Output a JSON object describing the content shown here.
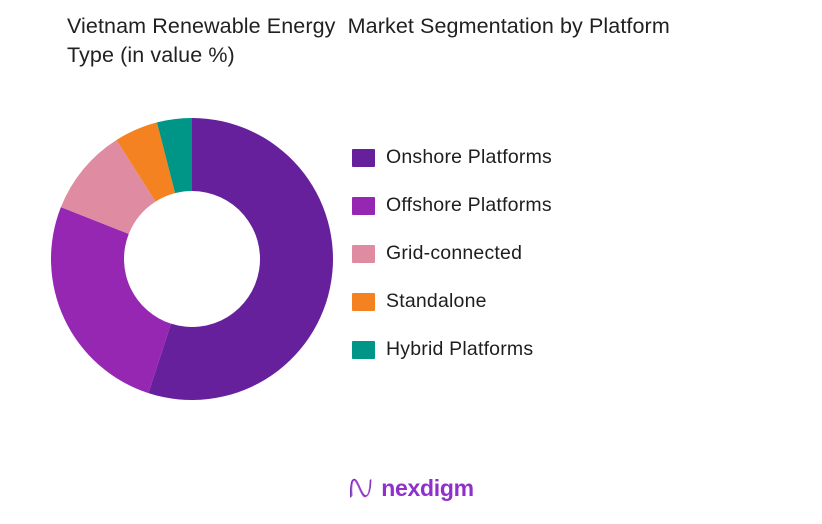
{
  "title": {
    "line1": "Vietnam Renewable Energy  Market Segmentation by Platform",
    "line2": "Type (in value %)"
  },
  "chart_data": {
    "type": "pie",
    "subtype": "donut",
    "title": "Vietnam Renewable Energy Market Segmentation by Platform Type (in value %)",
    "unit": "value %",
    "segments": [
      {
        "label": "Onshore Platforms",
        "value": 55,
        "color": "#67209c"
      },
      {
        "label": "Offshore Platforms",
        "value": 26,
        "color": "#9527b2"
      },
      {
        "label": "Grid-connected",
        "value": 10,
        "color": "#df8ca3"
      },
      {
        "label": "Standalone",
        "value": 5,
        "color": "#f58220"
      },
      {
        "label": "Hybrid Platforms",
        "value": 4,
        "color": "#009687"
      }
    ],
    "start_angle_deg": 0,
    "direction": "clockwise",
    "inner_radius_ratio": 0.482,
    "legend_position": "right",
    "data_labels": false
  },
  "footer": {
    "brand": "nexdigm",
    "logo_icon": "nexdigm-n-wave-icon"
  }
}
